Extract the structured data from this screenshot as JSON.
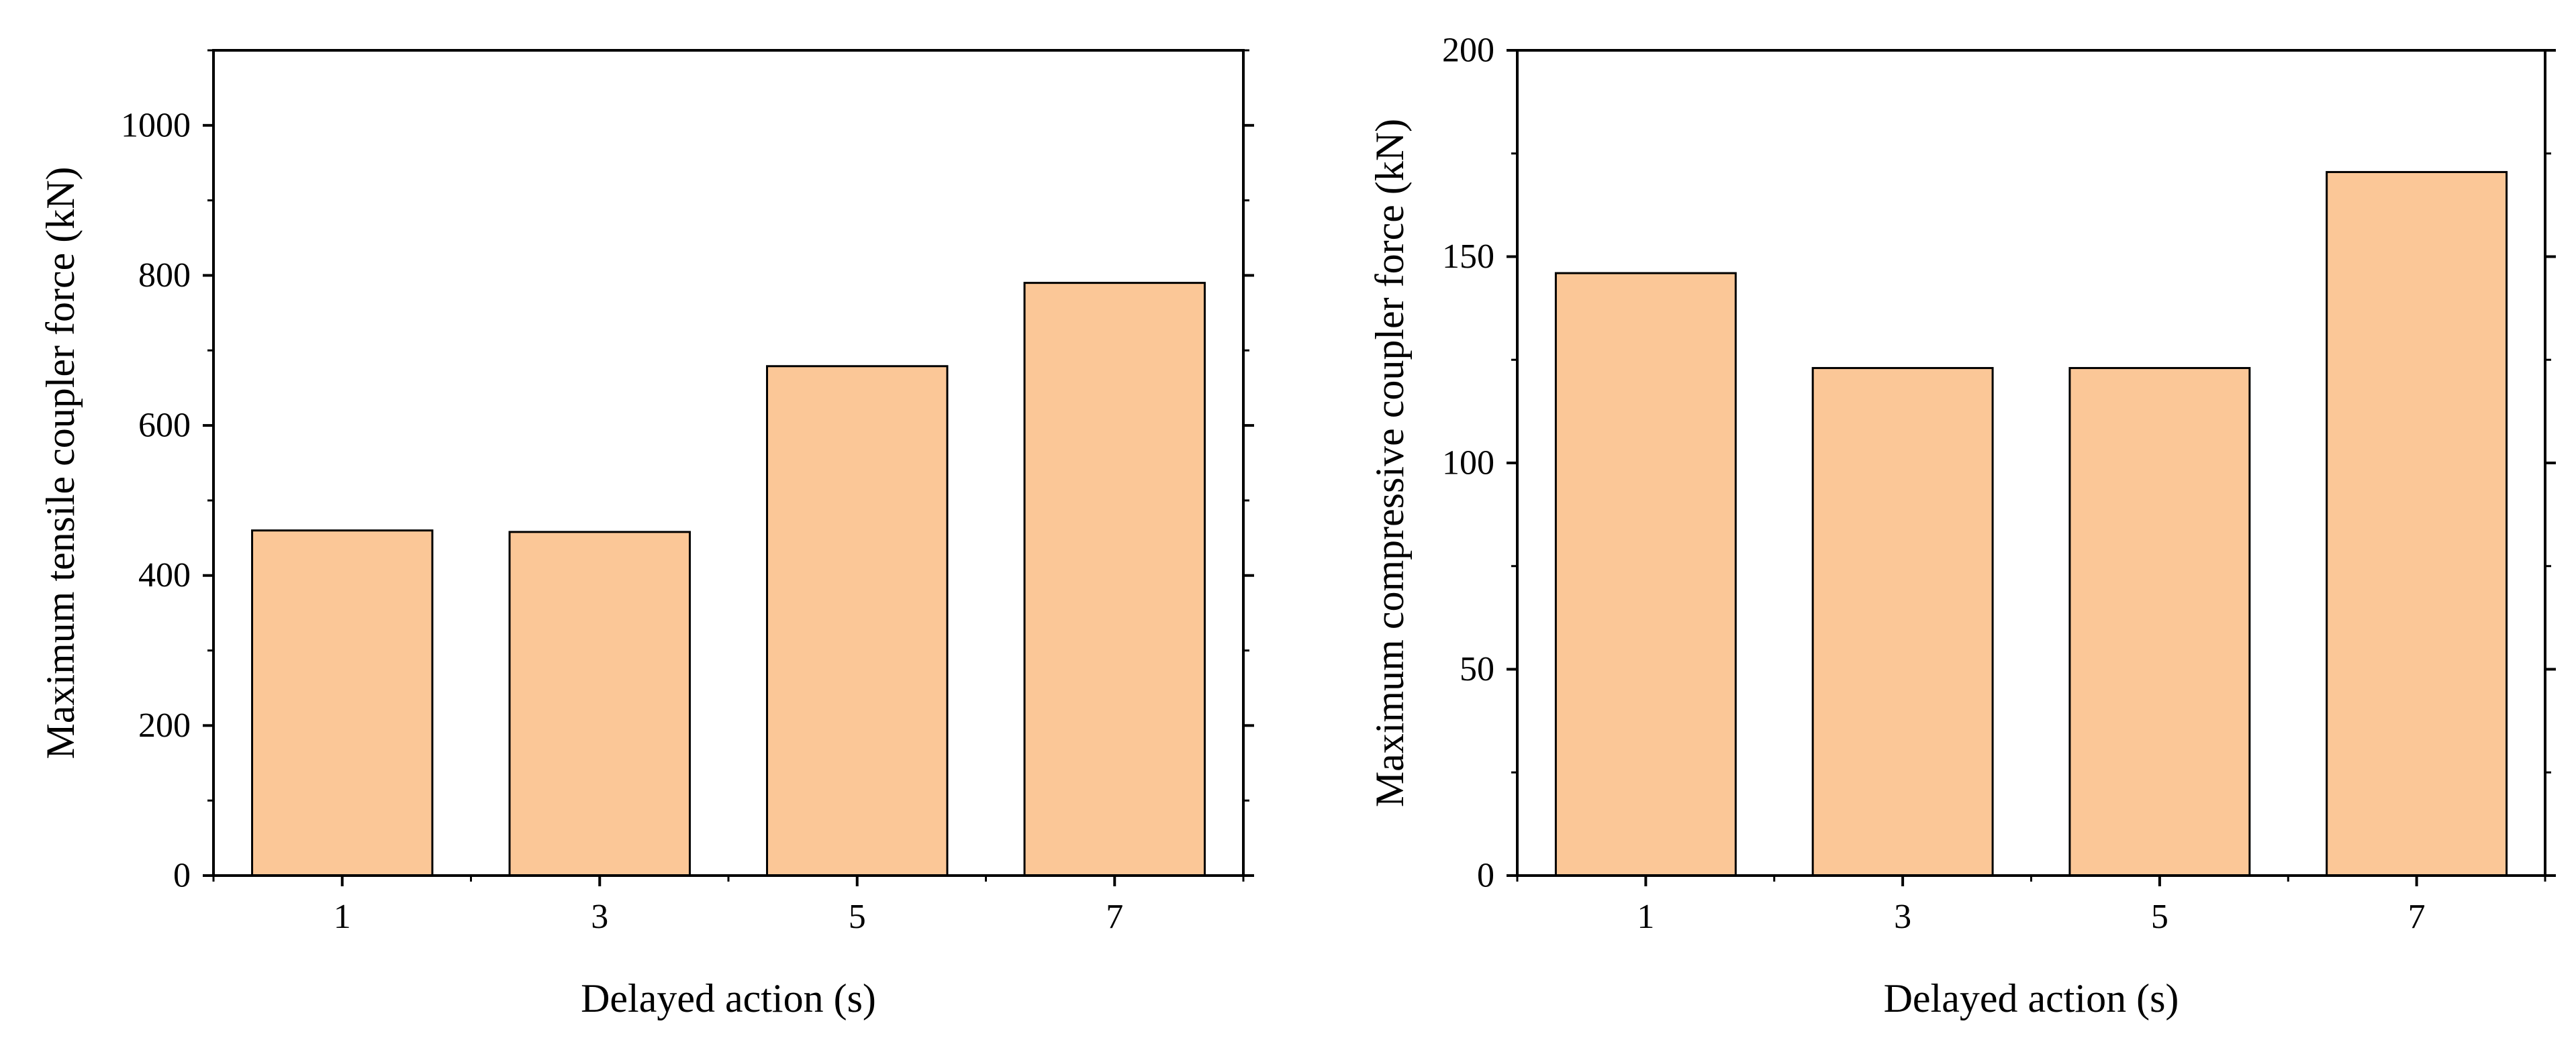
{
  "colors": {
    "bar_fill": "#FBC797",
    "bar_stroke": "#000000",
    "axis": "#000000"
  },
  "chart_data": [
    {
      "type": "bar",
      "categories": [
        "1",
        "3",
        "5",
        "7"
      ],
      "values": [
        460,
        458,
        679,
        790
      ],
      "xlabel": "Delayed action (s)",
      "ylabel": "Maximum tensile coupler force (kN)",
      "ylim": [
        0,
        1100
      ],
      "yticks": [
        0,
        200,
        400,
        600,
        800,
        1000
      ],
      "grid": false
    },
    {
      "type": "bar",
      "categories": [
        "1",
        "3",
        "5",
        "7"
      ],
      "values": [
        146,
        123,
        123,
        170.5
      ],
      "xlabel": "Delayed action (s)",
      "ylabel": "Maximum compressive coupler force (kN)",
      "ylim": [
        0,
        200
      ],
      "yticks": [
        0,
        50,
        100,
        150,
        200
      ],
      "grid": false
    }
  ]
}
